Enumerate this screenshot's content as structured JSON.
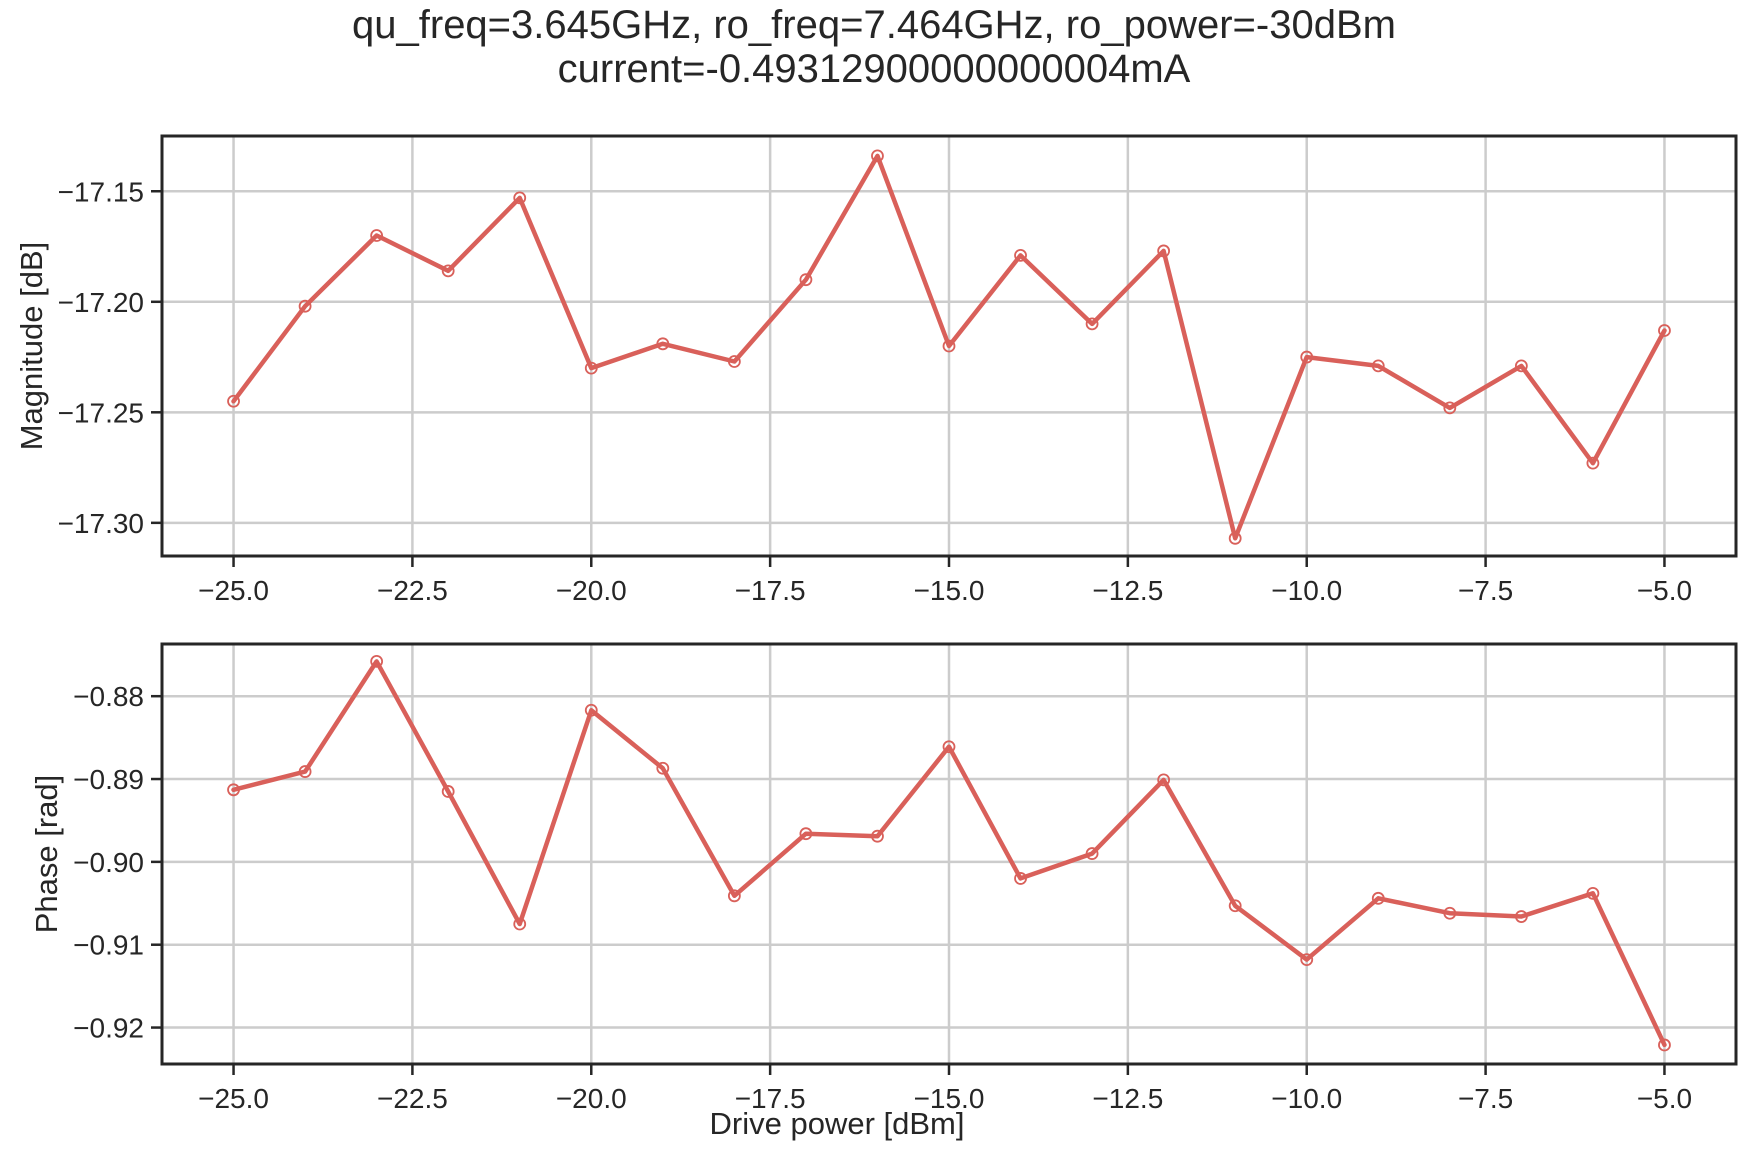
{
  "figure": {
    "title_line1": "qu_freq=3.645GHz, ro_freq=7.464GHz, ro_power=-30dBm",
    "title_line2": "current=-0.49312900000000004mA"
  },
  "colors": {
    "line": "#d9605a",
    "grid": "#cccccc",
    "axes": "#262626",
    "background": "#ffffff"
  },
  "chart_data": [
    {
      "type": "line",
      "title": "",
      "xlabel": "",
      "ylabel": "Magnitude [dB]",
      "xlim": [
        -26.0,
        -4.0
      ],
      "ylim": [
        -17.315,
        -17.125
      ],
      "grid": true,
      "marker": "hollow-circle",
      "xticks": [
        -25.0,
        -22.5,
        -20.0,
        -17.5,
        -15.0,
        -12.5,
        -10.0,
        -7.5,
        -5.0
      ],
      "xtick_labels": [
        "−25.0",
        "−22.5",
        "−20.0",
        "−17.5",
        "−15.0",
        "−12.5",
        "−10.0",
        "−7.5",
        "−5.0"
      ],
      "yticks": [
        -17.15,
        -17.2,
        -17.25,
        -17.3
      ],
      "ytick_labels": [
        "−17.15",
        "−17.20",
        "−17.25",
        "−17.30"
      ],
      "x": [
        -25,
        -24,
        -23,
        -22,
        -21,
        -20,
        -19,
        -18,
        -17,
        -16,
        -15,
        -14,
        -13,
        -12,
        -11,
        -10,
        -9,
        -8,
        -7,
        -6,
        -5
      ],
      "y": [
        -17.245,
        -17.202,
        -17.17,
        -17.186,
        -17.153,
        -17.23,
        -17.219,
        -17.227,
        -17.19,
        -17.134,
        -17.22,
        -17.179,
        -17.21,
        -17.177,
        -17.307,
        -17.225,
        -17.229,
        -17.248,
        -17.229,
        -17.273,
        -17.213
      ]
    },
    {
      "type": "line",
      "title": "",
      "xlabel": "Drive power [dBm]",
      "ylabel": "Phase [rad]",
      "xlim": [
        -26.0,
        -4.0
      ],
      "ylim": [
        -0.9244,
        -0.8737
      ],
      "grid": true,
      "marker": "hollow-circle",
      "xticks": [
        -25.0,
        -22.5,
        -20.0,
        -17.5,
        -15.0,
        -12.5,
        -10.0,
        -7.5,
        -5.0
      ],
      "xtick_labels": [
        "−25.0",
        "−22.5",
        "−20.0",
        "−17.5",
        "−15.0",
        "−12.5",
        "−10.0",
        "−7.5",
        "−5.0"
      ],
      "yticks": [
        -0.88,
        -0.89,
        -0.9,
        -0.91,
        -0.92
      ],
      "ytick_labels": [
        "−0.88",
        "−0.89",
        "−0.90",
        "−0.91",
        "−0.92"
      ],
      "x": [
        -25,
        -24,
        -23,
        -22,
        -21,
        -20,
        -19,
        -18,
        -17,
        -16,
        -15,
        -14,
        -13,
        -12,
        -11,
        -10,
        -9,
        -8,
        -7,
        -6,
        -5
      ],
      "y": [
        -0.8913,
        -0.8891,
        -0.8758,
        -0.8915,
        -0.9075,
        -0.8817,
        -0.8887,
        -0.9041,
        -0.8966,
        -0.8969,
        -0.8861,
        -0.902,
        -0.899,
        -0.8901,
        -0.9053,
        -0.9118,
        -0.9044,
        -0.9062,
        -0.9066,
        -0.9038,
        -0.9221
      ]
    }
  ]
}
